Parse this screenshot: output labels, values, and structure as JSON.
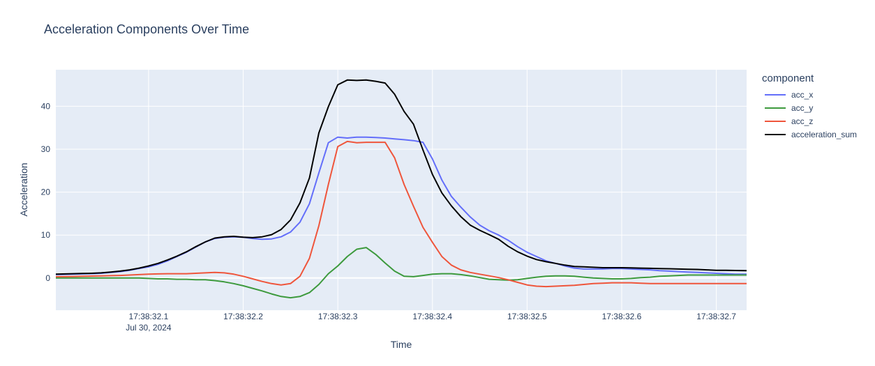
{
  "chart_data": {
    "type": "line",
    "title": "Acceleration Components Over Time",
    "xlabel": "Time",
    "ylabel": "Acceleration",
    "x_ticks": [
      {
        "t": 0.1,
        "label": "17:38:32.1",
        "sublabel": "Jul 30, 2024"
      },
      {
        "t": 0.2,
        "label": "17:38:32.2",
        "sublabel": ""
      },
      {
        "t": 0.3,
        "label": "17:38:32.3",
        "sublabel": ""
      },
      {
        "t": 0.4,
        "label": "17:38:32.4",
        "sublabel": ""
      },
      {
        "t": 0.5,
        "label": "17:38:32.5",
        "sublabel": ""
      },
      {
        "t": 0.6,
        "label": "17:38:32.6",
        "sublabel": ""
      },
      {
        "t": 0.7,
        "label": "17:38:32.7",
        "sublabel": ""
      }
    ],
    "y_ticks": [
      0,
      10,
      20,
      30,
      40
    ],
    "xlim": [
      0.002,
      0.732
    ],
    "ylim": [
      -7.5,
      48.5
    ],
    "grid": true,
    "legend": {
      "title": "component",
      "position": "right"
    },
    "x": [
      0.002,
      0.02,
      0.03,
      0.04,
      0.05,
      0.06,
      0.07,
      0.08,
      0.09,
      0.1,
      0.11,
      0.12,
      0.13,
      0.14,
      0.15,
      0.16,
      0.17,
      0.18,
      0.19,
      0.2,
      0.21,
      0.22,
      0.23,
      0.24,
      0.25,
      0.26,
      0.27,
      0.28,
      0.29,
      0.3,
      0.31,
      0.32,
      0.33,
      0.34,
      0.35,
      0.36,
      0.37,
      0.38,
      0.39,
      0.4,
      0.41,
      0.42,
      0.43,
      0.44,
      0.45,
      0.46,
      0.47,
      0.48,
      0.49,
      0.5,
      0.51,
      0.52,
      0.53,
      0.54,
      0.55,
      0.56,
      0.57,
      0.58,
      0.59,
      0.6,
      0.61,
      0.62,
      0.63,
      0.64,
      0.65,
      0.66,
      0.67,
      0.68,
      0.69,
      0.7,
      0.71,
      0.72,
      0.732
    ],
    "series": [
      {
        "name": "acc_x",
        "color": "#636efa",
        "values": [
          0.8,
          0.9,
          0.95,
          1.0,
          1.1,
          1.3,
          1.5,
          1.8,
          2.2,
          2.6,
          3.2,
          4.0,
          5.0,
          6.0,
          7.2,
          8.4,
          9.2,
          9.5,
          9.6,
          9.5,
          9.2,
          9.0,
          9.1,
          9.6,
          10.7,
          13.0,
          17.3,
          24.5,
          31.5,
          32.8,
          32.6,
          32.8,
          32.8,
          32.7,
          32.6,
          32.4,
          32.2,
          32.0,
          31.6,
          27.7,
          22.8,
          19.0,
          16.5,
          14.2,
          12.3,
          11.0,
          10.0,
          8.8,
          7.3,
          6.0,
          5.0,
          4.0,
          3.4,
          2.8,
          2.3,
          2.1,
          2.1,
          2.1,
          2.2,
          2.2,
          2.1,
          2.0,
          1.9,
          1.7,
          1.6,
          1.5,
          1.4,
          1.3,
          1.2,
          1.1,
          1.0,
          0.9,
          0.9
        ]
      },
      {
        "name": "acc_y",
        "color": "#3d9a3d",
        "values": [
          0.0,
          0.0,
          0.0,
          0.0,
          0.0,
          0.0,
          0.0,
          0.0,
          0.0,
          -0.1,
          -0.2,
          -0.2,
          -0.3,
          -0.3,
          -0.4,
          -0.4,
          -0.6,
          -0.9,
          -1.3,
          -1.8,
          -2.4,
          -3.0,
          -3.7,
          -4.3,
          -4.6,
          -4.3,
          -3.4,
          -1.5,
          1.0,
          2.8,
          5.0,
          6.7,
          7.1,
          5.5,
          3.5,
          1.6,
          0.4,
          0.3,
          0.6,
          0.9,
          1.0,
          1.0,
          0.8,
          0.5,
          0.1,
          -0.3,
          -0.4,
          -0.5,
          -0.4,
          -0.1,
          0.2,
          0.4,
          0.5,
          0.5,
          0.4,
          0.2,
          0.0,
          -0.1,
          -0.2,
          -0.2,
          -0.1,
          0.1,
          0.2,
          0.4,
          0.5,
          0.6,
          0.7,
          0.7,
          0.7,
          0.7,
          0.7,
          0.7,
          0.7
        ]
      },
      {
        "name": "acc_z",
        "color": "#ef553b",
        "values": [
          0.3,
          0.35,
          0.4,
          0.45,
          0.5,
          0.55,
          0.6,
          0.7,
          0.8,
          0.9,
          0.95,
          1.0,
          1.0,
          1.0,
          1.1,
          1.2,
          1.3,
          1.2,
          0.9,
          0.4,
          -0.2,
          -0.8,
          -1.3,
          -1.6,
          -1.3,
          0.4,
          4.6,
          12.2,
          21.8,
          30.6,
          31.8,
          31.5,
          31.6,
          31.6,
          31.6,
          28.0,
          21.8,
          16.7,
          11.8,
          8.3,
          5.0,
          3.0,
          1.9,
          1.3,
          0.9,
          0.5,
          0.1,
          -0.4,
          -1.0,
          -1.6,
          -1.9,
          -2.0,
          -1.9,
          -1.8,
          -1.7,
          -1.5,
          -1.3,
          -1.2,
          -1.1,
          -1.1,
          -1.1,
          -1.2,
          -1.3,
          -1.3,
          -1.3,
          -1.3,
          -1.3,
          -1.3,
          -1.3,
          -1.3,
          -1.3,
          -1.3,
          -1.3
        ]
      },
      {
        "name": "acceleration_sum",
        "color": "#000000",
        "values": [
          0.9,
          1.0,
          1.05,
          1.1,
          1.2,
          1.4,
          1.6,
          1.9,
          2.3,
          2.8,
          3.4,
          4.2,
          5.1,
          6.1,
          7.3,
          8.4,
          9.3,
          9.6,
          9.7,
          9.5,
          9.4,
          9.6,
          10.1,
          11.3,
          13.5,
          17.5,
          23.3,
          33.8,
          39.9,
          45.0,
          46.1,
          46.0,
          46.1,
          45.8,
          45.4,
          42.8,
          38.8,
          35.8,
          29.8,
          24.1,
          19.8,
          16.8,
          14.3,
          12.3,
          11.1,
          10.1,
          9.0,
          7.4,
          6.1,
          5.1,
          4.3,
          3.8,
          3.4,
          3.0,
          2.7,
          2.6,
          2.5,
          2.4,
          2.4,
          2.4,
          2.35,
          2.3,
          2.25,
          2.2,
          2.15,
          2.1,
          2.05,
          2.0,
          1.9,
          1.8,
          1.8,
          1.75,
          1.7
        ]
      }
    ]
  }
}
